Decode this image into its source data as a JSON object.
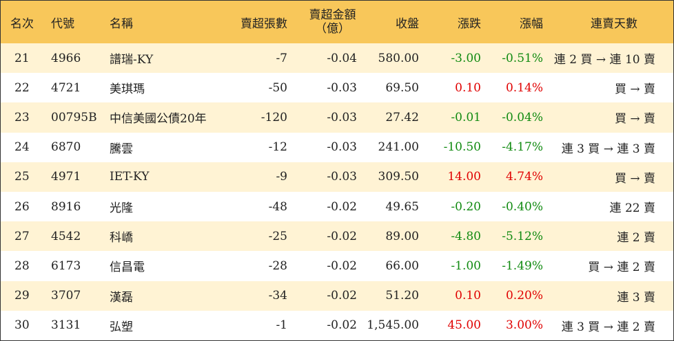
{
  "header": {
    "rank": "名次",
    "code": "代號",
    "name": "名稱",
    "net_volume": "賣超張數",
    "net_amount_line1": "賣超金額",
    "net_amount_line2": "（億）",
    "close": "收盤",
    "change": "漲跌",
    "change_pct": "漲幅",
    "streak": "連賣天數"
  },
  "rows": [
    {
      "rank": "21",
      "code": "4966",
      "name": "譜瑞-KY",
      "net_volume": "-7",
      "net_amount": "-0.04",
      "close": "580.00",
      "change": "-3.00",
      "change_pct": "-0.51%",
      "streak": "連 2 買 → 連 10 賣",
      "direction": "down"
    },
    {
      "rank": "22",
      "code": "4721",
      "name": "美琪瑪",
      "net_volume": "-50",
      "net_amount": "-0.03",
      "close": "69.50",
      "change": "0.10",
      "change_pct": "0.14%",
      "streak": "買 → 賣",
      "direction": "up"
    },
    {
      "rank": "23",
      "code": "00795B",
      "name": "中信美國公債20年",
      "net_volume": "-120",
      "net_amount": "-0.03",
      "close": "27.42",
      "change": "-0.01",
      "change_pct": "-0.04%",
      "streak": "買 → 賣",
      "direction": "down"
    },
    {
      "rank": "24",
      "code": "6870",
      "name": "騰雲",
      "net_volume": "-12",
      "net_amount": "-0.03",
      "close": "241.00",
      "change": "-10.50",
      "change_pct": "-4.17%",
      "streak": "連 3 買 → 連 3 賣",
      "direction": "down"
    },
    {
      "rank": "25",
      "code": "4971",
      "name": "IET-KY",
      "net_volume": "-9",
      "net_amount": "-0.03",
      "close": "309.50",
      "change": "14.00",
      "change_pct": "4.74%",
      "streak": "買 → 賣",
      "direction": "up"
    },
    {
      "rank": "26",
      "code": "8916",
      "name": "光隆",
      "net_volume": "-48",
      "net_amount": "-0.02",
      "close": "49.65",
      "change": "-0.20",
      "change_pct": "-0.40%",
      "streak": "連 22 賣",
      "direction": "down"
    },
    {
      "rank": "27",
      "code": "4542",
      "name": "科嶠",
      "net_volume": "-25",
      "net_amount": "-0.02",
      "close": "89.00",
      "change": "-4.80",
      "change_pct": "-5.12%",
      "streak": "連 2 賣",
      "direction": "down"
    },
    {
      "rank": "28",
      "code": "6173",
      "name": "信昌電",
      "net_volume": "-28",
      "net_amount": "-0.02",
      "close": "66.00",
      "change": "-1.00",
      "change_pct": "-1.49%",
      "streak": "買 → 連 2 賣",
      "direction": "down"
    },
    {
      "rank": "29",
      "code": "3707",
      "name": "漢磊",
      "net_volume": "-34",
      "net_amount": "-0.02",
      "close": "51.20",
      "change": "0.10",
      "change_pct": "0.20%",
      "streak": "連 3 賣",
      "direction": "up"
    },
    {
      "rank": "30",
      "code": "3131",
      "name": "弘塑",
      "net_volume": "-1",
      "net_amount": "-0.02",
      "close": "1,545.00",
      "change": "45.00",
      "change_pct": "3.00%",
      "streak": "連 3 買 → 連 2 賣",
      "direction": "up"
    }
  ],
  "colors": {
    "header_bg": "#f8c75a",
    "odd_row_bg": "#fff3d4",
    "up": "#e00000",
    "down": "#108a10"
  }
}
